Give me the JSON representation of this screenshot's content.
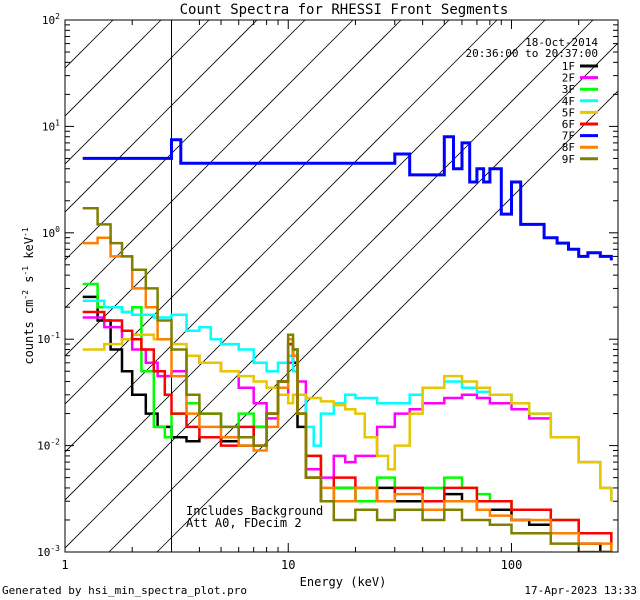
{
  "chart_data": {
    "type": "line",
    "title": "Count Spectra for RHESSI Front Segments",
    "xlabel": "Energy (keV)",
    "ylabel_main": "counts cm",
    "ylabel_exp1": "-2",
    "ylabel_mid1": " s",
    "ylabel_exp2": "-1",
    "ylabel_mid2": " keV",
    "ylabel_exp3": "-1",
    "x_scale": "log",
    "y_scale": "log",
    "xlim": [
      1,
      300
    ],
    "ylim": [
      0.001,
      100
    ],
    "x_ticks": [
      {
        "value": 1,
        "label": "1"
      },
      {
        "value": 10,
        "label": "10"
      },
      {
        "value": 100,
        "label": "100"
      }
    ],
    "y_ticks": [
      {
        "value": 0.001,
        "base": "10",
        "exp": "-3"
      },
      {
        "value": 0.01,
        "base": "10",
        "exp": "-2"
      },
      {
        "value": 0.1,
        "base": "10",
        "exp": "-1"
      },
      {
        "value": 1,
        "base": "10",
        "exp": "0"
      },
      {
        "value": 10,
        "base": "10",
        "exp": "1"
      },
      {
        "value": 100,
        "base": "10",
        "exp": "2"
      }
    ],
    "date": "18-Oct-2014",
    "time_range": "20:36:00 to 20:37:00",
    "note_line1": "Includes Background",
    "note_line2": "Att A0, FDecim 2",
    "hatched_region_max_energy": 3,
    "series": [
      {
        "name": "1F",
        "color": "#000000",
        "x": [
          1.2,
          1.4,
          1.6,
          1.8,
          2.0,
          2.3,
          2.6,
          3.0,
          3.5,
          4.0,
          5.0,
          6.0,
          7.0,
          8.0,
          9.0,
          10.0,
          10.5,
          11.0,
          12,
          14,
          16,
          20,
          25,
          30,
          40,
          50,
          60,
          70,
          80,
          100,
          120,
          150,
          200,
          250,
          280
        ],
        "y": [
          0.25,
          0.15,
          0.08,
          0.05,
          0.03,
          0.02,
          0.015,
          0.012,
          0.011,
          0.012,
          0.011,
          0.01,
          0.015,
          0.02,
          0.04,
          0.09,
          0.06,
          0.015,
          0.005,
          0.003,
          0.004,
          0.003,
          0.004,
          0.003,
          0.003,
          0.0035,
          0.003,
          0.0025,
          0.0025,
          0.002,
          0.0018,
          0.0015,
          0.0012,
          0.001,
          0.001
        ]
      },
      {
        "name": "2F",
        "color": "#ff00ff",
        "x": [
          1.2,
          1.5,
          1.8,
          2.0,
          2.3,
          2.6,
          3.0,
          3.5,
          4.0,
          5.0,
          6.0,
          7.0,
          8.0,
          9.0,
          10.0,
          10.5,
          11.0,
          12,
          14,
          16,
          18,
          20,
          25,
          30,
          35,
          40,
          50,
          60,
          70,
          80,
          100,
          120,
          150,
          200,
          250,
          280
        ],
        "y": [
          0.16,
          0.13,
          0.1,
          0.08,
          0.06,
          0.045,
          0.05,
          0.07,
          0.06,
          0.05,
          0.035,
          0.025,
          0.018,
          0.03,
          0.06,
          0.08,
          0.04,
          0.006,
          0.005,
          0.008,
          0.007,
          0.008,
          0.015,
          0.02,
          0.022,
          0.025,
          0.028,
          0.03,
          0.028,
          0.025,
          0.022,
          0.018,
          0.012,
          0.007,
          0.004,
          0.003
        ]
      },
      {
        "name": "3F",
        "color": "#00ff00",
        "x": [
          1.2,
          1.4,
          1.6,
          1.8,
          2.0,
          2.2,
          2.5,
          2.8,
          3.0,
          3.5,
          4.0,
          5.0,
          6.0,
          7.0,
          8.0,
          9.0,
          10.0,
          10.5,
          11.0,
          12,
          14,
          16,
          20,
          25,
          30,
          40,
          50,
          60,
          70,
          80,
          100,
          150,
          200,
          280
        ],
        "y": [
          0.33,
          0.2,
          0.2,
          0.18,
          0.2,
          0.05,
          0.015,
          0.012,
          0.02,
          0.025,
          0.02,
          0.015,
          0.02,
          0.015,
          0.02,
          0.04,
          0.1,
          0.08,
          0.02,
          0.008,
          0.003,
          0.004,
          0.003,
          0.005,
          0.004,
          0.004,
          0.005,
          0.004,
          0.0035,
          0.003,
          0.0025,
          0.002,
          0.0015,
          0.001
        ]
      },
      {
        "name": "4F",
        "color": "#00ffff",
        "x": [
          1.2,
          1.5,
          1.8,
          2.0,
          2.5,
          3.0,
          3.5,
          4.0,
          4.5,
          5.0,
          6.0,
          7.0,
          8.0,
          9.0,
          10.0,
          10.5,
          11.0,
          12,
          13,
          14,
          16,
          18,
          20,
          25,
          30,
          35,
          40,
          50,
          60,
          70,
          80,
          100,
          120,
          150,
          200,
          250,
          280
        ],
        "y": [
          0.23,
          0.2,
          0.18,
          0.17,
          0.16,
          0.17,
          0.12,
          0.13,
          0.1,
          0.09,
          0.08,
          0.06,
          0.05,
          0.06,
          0.07,
          0.05,
          0.03,
          0.015,
          0.01,
          0.02,
          0.025,
          0.03,
          0.028,
          0.025,
          0.025,
          0.03,
          0.035,
          0.04,
          0.035,
          0.032,
          0.03,
          0.025,
          0.02,
          0.012,
          0.007,
          0.004,
          0.003
        ]
      },
      {
        "name": "5F",
        "color": "#e6c700",
        "x": [
          1.2,
          1.5,
          1.8,
          2.0,
          2.5,
          3.0,
          3.5,
          4.0,
          5.0,
          6.0,
          7.0,
          8.0,
          9.0,
          10.0,
          10.5,
          11.0,
          12,
          14,
          16,
          18,
          20,
          22,
          25,
          28,
          30,
          35,
          40,
          50,
          60,
          70,
          80,
          100,
          120,
          150,
          200,
          250,
          280
        ],
        "y": [
          0.08,
          0.09,
          0.1,
          0.11,
          0.1,
          0.09,
          0.07,
          0.06,
          0.05,
          0.045,
          0.04,
          0.035,
          0.03,
          0.025,
          0.03,
          0.03,
          0.028,
          0.026,
          0.024,
          0.022,
          0.02,
          0.012,
          0.008,
          0.006,
          0.01,
          0.02,
          0.035,
          0.045,
          0.04,
          0.035,
          0.03,
          0.025,
          0.02,
          0.012,
          0.007,
          0.004,
          0.003
        ]
      },
      {
        "name": "6F",
        "color": "#ff0000",
        "x": [
          1.2,
          1.5,
          1.8,
          2.0,
          2.2,
          2.5,
          2.8,
          3.0,
          3.5,
          4.0,
          5.0,
          6.0,
          7.0,
          8.0,
          9.0,
          10.0,
          10.5,
          11.0,
          12,
          14,
          16,
          20,
          25,
          30,
          40,
          50,
          60,
          70,
          80,
          100,
          150,
          200,
          280
        ],
        "y": [
          0.18,
          0.15,
          0.12,
          0.1,
          0.08,
          0.05,
          0.03,
          0.02,
          0.015,
          0.012,
          0.01,
          0.015,
          0.01,
          0.02,
          0.04,
          0.09,
          0.07,
          0.02,
          0.008,
          0.003,
          0.005,
          0.004,
          0.003,
          0.004,
          0.003,
          0.004,
          0.004,
          0.003,
          0.003,
          0.0025,
          0.002,
          0.0015,
          0.001
        ]
      },
      {
        "name": "7F",
        "color": "#0000ff",
        "x": [
          1.2,
          1.4,
          3.0,
          3.3,
          3.5,
          30,
          35,
          40,
          45,
          50,
          55,
          60,
          65,
          70,
          75,
          80,
          90,
          100,
          110,
          120,
          140,
          160,
          180,
          200,
          220,
          250,
          280
        ],
        "y": [
          5,
          5,
          7.5,
          4.5,
          4.5,
          5.5,
          3.5,
          3.5,
          3.5,
          8.0,
          4.0,
          7.0,
          3.0,
          4.0,
          3.0,
          4.0,
          1.5,
          3.0,
          1.2,
          1.2,
          0.9,
          0.8,
          0.7,
          0.6,
          0.65,
          0.6,
          0.55
        ]
      },
      {
        "name": "8F",
        "color": "#ff8000",
        "x": [
          1.2,
          1.4,
          1.6,
          1.8,
          2.0,
          2.3,
          2.6,
          3.0,
          3.5,
          4.0,
          5.0,
          6.0,
          7.0,
          8.0,
          9.0,
          10.0,
          10.5,
          11.0,
          12,
          14,
          16,
          20,
          25,
          30,
          40,
          50,
          60,
          70,
          80,
          100,
          150,
          200,
          280
        ],
        "y": [
          0.8,
          0.9,
          0.6,
          0.6,
          0.3,
          0.2,
          0.1,
          0.045,
          0.02,
          0.015,
          0.012,
          0.01,
          0.009,
          0.015,
          0.035,
          0.1,
          0.07,
          0.02,
          0.005,
          0.004,
          0.003,
          0.004,
          0.003,
          0.0035,
          0.0025,
          0.003,
          0.003,
          0.0025,
          0.0022,
          0.002,
          0.0015,
          0.0012,
          0.001
        ]
      },
      {
        "name": "9F",
        "color": "#808000",
        "x": [
          1.2,
          1.4,
          1.6,
          1.8,
          2.0,
          2.3,
          2.6,
          3.0,
          3.5,
          4.0,
          5.0,
          6.0,
          7.0,
          8.0,
          9.0,
          10.0,
          10.5,
          11.0,
          12,
          14,
          16,
          20,
          25,
          30,
          40,
          50,
          60,
          70,
          80,
          100,
          150,
          200,
          280
        ],
        "y": [
          1.7,
          1.2,
          0.8,
          0.6,
          0.45,
          0.3,
          0.15,
          0.08,
          0.03,
          0.02,
          0.015,
          0.012,
          0.01,
          0.02,
          0.04,
          0.11,
          0.08,
          0.02,
          0.005,
          0.003,
          0.002,
          0.0025,
          0.002,
          0.0025,
          0.002,
          0.0025,
          0.002,
          0.002,
          0.0018,
          0.0015,
          0.0012,
          0.001,
          0.001
        ]
      }
    ]
  },
  "footer": {
    "generated_by": "Generated by hsi_min_spectra_plot.pro",
    "timestamp": "17-Apr-2023 13:33"
  }
}
